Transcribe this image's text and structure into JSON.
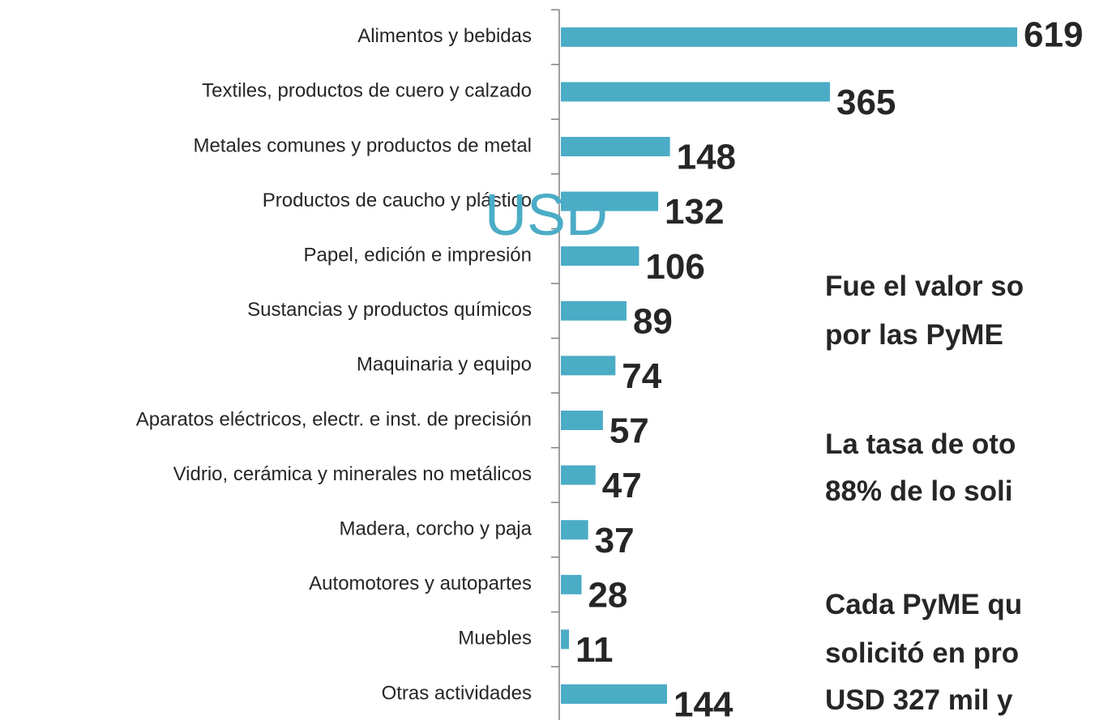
{
  "chart_data": {
    "type": "bar",
    "orientation": "horizontal",
    "color": "#4bacc6",
    "categories": [
      "Alimentos y bebidas",
      "Textiles, productos de cuero y calzado",
      "Metales comunes y productos de metal",
      "Productos de caucho y plástico",
      "Papel, edición e impresión",
      "Sustancias y productos químicos",
      "Maquinaria y equipo",
      "Aparatos eléctricos, electr. e inst. de precisión",
      "Vidrio, cerámica y minerales no metálicos",
      "Madera, corcho y paja",
      "Automotores y autopartes",
      "Muebles",
      "Otras actividades"
    ],
    "values": [
      619,
      365,
      148,
      132,
      106,
      89,
      74,
      57,
      47,
      37,
      28,
      11,
      144
    ],
    "annotations": [
      "USD",
      "Fue el valor so",
      "por las PyME",
      "La tasa de oto",
      "88% de lo soli",
      "Cada PyME qu",
      "solicitó en pro",
      "USD 327 mil y"
    ]
  }
}
